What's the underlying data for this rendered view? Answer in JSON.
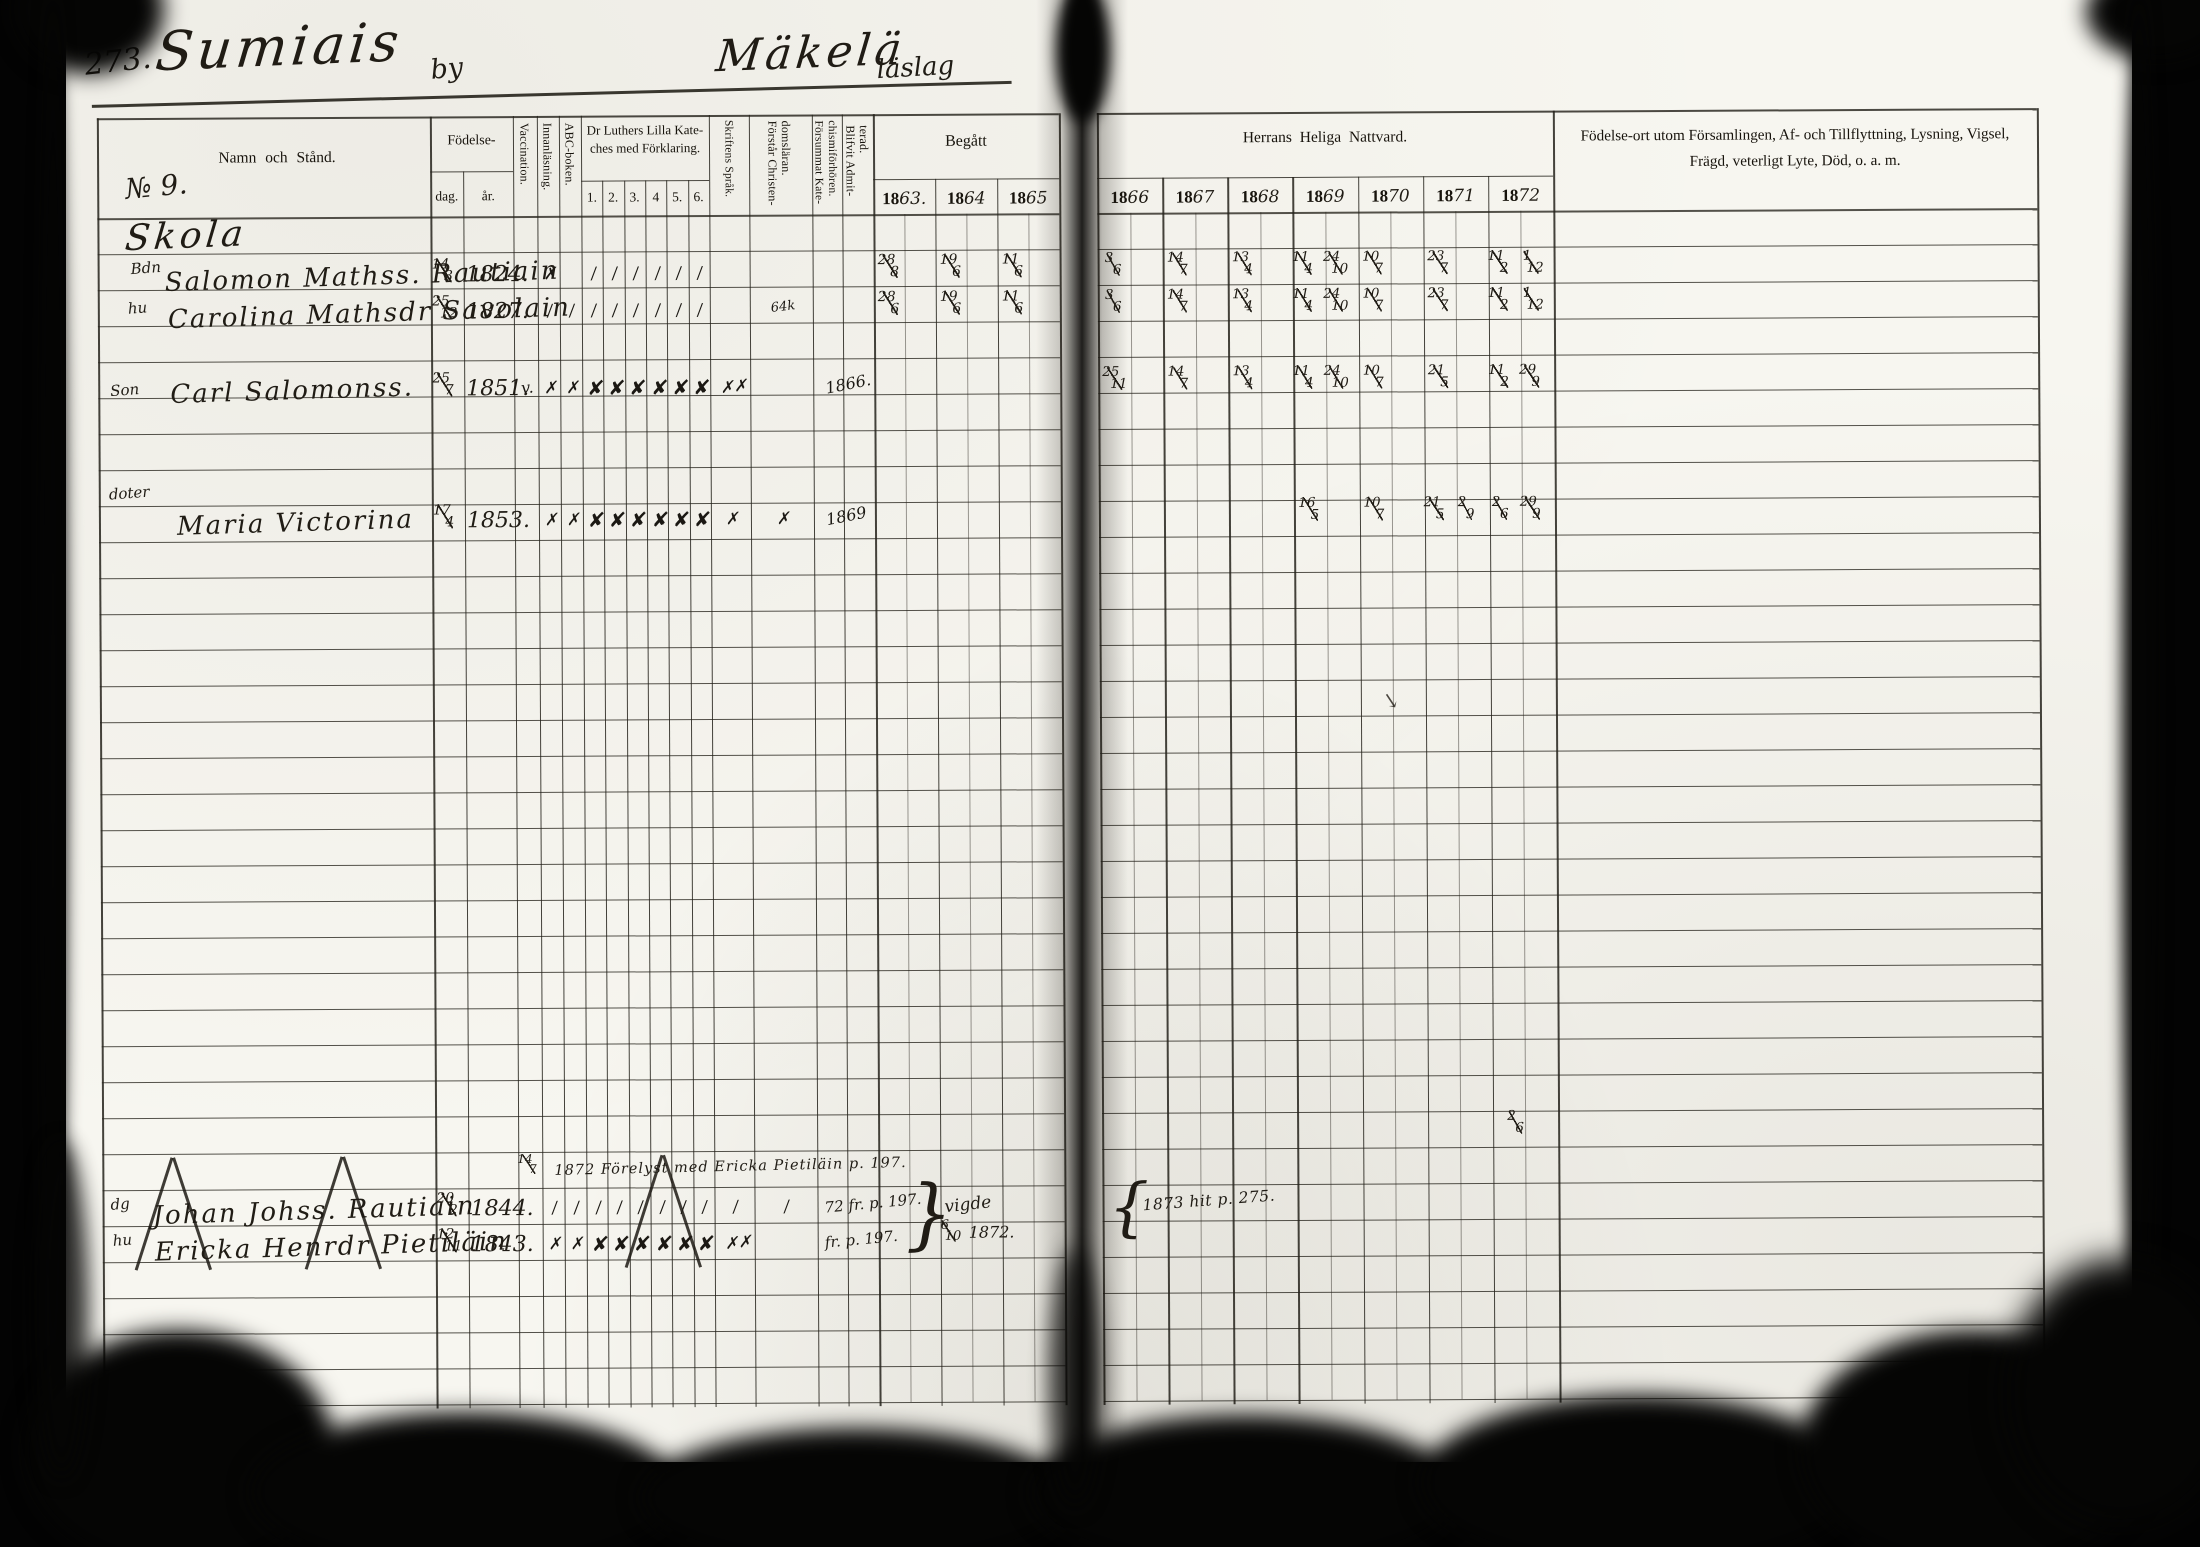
{
  "colors": {
    "paper": "#f7f6f0",
    "ink": "#201c15",
    "print_ink": "#17130c",
    "scan_black": "#050504"
  },
  "titles": {
    "page_number": "273.",
    "village": "Sumiais",
    "village_suffix": "by",
    "district": "Mäkelä",
    "district_suffix": "läslag",
    "series_no": "№ 9."
  },
  "header": {
    "name_col": "Namn och Stånd.",
    "birth_label": "Födelse-",
    "birth_day": "dag.",
    "birth_year": "år.",
    "col_vaccination": "Vaccination.",
    "col_reading": "Innanläsning.",
    "col_abc": "ABC-boken.",
    "catechism_line1": "Dr Luthers Lilla Kate-",
    "catechism_line2": "ches med Förklaring.",
    "catechism_cols": [
      "1.",
      "2.",
      "3.",
      "4",
      "5.",
      "6."
    ],
    "col_scripture": "Skriftens Språk.",
    "col_understands": "Förstår Christen-\ndomsläran.",
    "col_missed": "Försummat Kate-\nchismiförhören.",
    "col_admitted": "Blifvit Admit-\nterad.",
    "communion_past_label": "Begått",
    "communion_past_years": [
      {
        "printed": "18",
        "written": "63."
      },
      {
        "printed": "18",
        "written": "64"
      },
      {
        "printed": "18",
        "written": "65"
      }
    ],
    "communion_label": "Herrans Heliga Nattvard.",
    "communion_years": [
      {
        "printed": "18",
        "written": "66"
      },
      {
        "printed": "18",
        "written": "67"
      },
      {
        "printed": "18",
        "written": "68"
      },
      {
        "printed": "18",
        "written": "69"
      },
      {
        "printed": "18",
        "written": "70"
      },
      {
        "printed": "18",
        "written": "71"
      },
      {
        "printed": "18",
        "written": "72"
      }
    ],
    "notes_col_line1": "Födelse-ort utom Församlingen, Af- och Tillflyttning, Lysning, Vigsel,",
    "notes_col_line2": "Frägd, veterligt Lyte, Död, o. a. m."
  },
  "section_heading": "Skola",
  "records": [
    {
      "prefix": "Bdn",
      "name": "Salomon Mathss. Rautiain",
      "birth_day": "14/3",
      "birth_year": "1824.",
      "marks": {
        "innan": "✗",
        "k1": "/",
        "k2": "/",
        "k3": "/",
        "k4": "/",
        "k5": "/",
        "k6": "/"
      },
      "begatt": [
        "28/8",
        "19/6",
        "11/6"
      ],
      "nattvard": [
        "3/6",
        "14/7",
        "13/4",
        "11/4 24/10",
        "10/7",
        "23/7",
        "11/2 1/12"
      ]
    },
    {
      "prefix": "hu",
      "name": "Carolina Mathsdr Savolain",
      "birth_day": "25/12",
      "birth_year": "1827.",
      "marks": {
        "innan": "/",
        "abc": "/",
        "k1": "/",
        "k2": "/",
        "k3": "/",
        "k4": "/",
        "k5": "/",
        "k6": "/",
        "forstar": "64k"
      },
      "begatt": [
        "28/6",
        "19/6",
        "11/6"
      ],
      "nattvard": [
        "3/6",
        "14/7",
        "13/4",
        "11/4 24/10",
        "10/7",
        "23/7",
        "11/2 1/12"
      ]
    },
    {
      "prefix": "Son",
      "name": "Carl Salomonss.",
      "birth_day": "25/7",
      "birth_year": "1851.",
      "marks": {
        "vacc": "v.",
        "innan": "✗",
        "abc": "✗",
        "k1": "✘",
        "k2": "✘",
        "k3": "✘",
        "k4": "✘",
        "k5": "✘",
        "k6": "✘",
        "sprak": "✗✗",
        "admit": "1866."
      },
      "begatt": [
        "",
        "",
        ""
      ],
      "nattvard": [
        "25/11",
        "14/7",
        "13/4",
        "11/4 24/10",
        "10/7",
        "21/5",
        "11/2 29/9"
      ]
    },
    {
      "prefix": "doter",
      "name": "Maria Victorina",
      "birth_day": "17/4",
      "birth_year": "1853.",
      "marks": {
        "innan": "✗",
        "abc": "✗",
        "k1": "✘",
        "k2": "✘",
        "k3": "✘",
        "k4": "✘",
        "k5": "✘",
        "k6": "✘",
        "sprak": "✗",
        "forstar": "✗",
        "admit": "1869"
      },
      "begatt": [
        "",
        "",
        ""
      ],
      "nattvard": [
        "",
        "",
        "",
        "16/5",
        "10/7",
        "21/5 2/9",
        "2/6 29/9"
      ]
    },
    {
      "prefix": "dg",
      "name": "Johan Johss. Rautiain",
      "birth_day": "20/2",
      "birth_year": "1844.",
      "crossed": true,
      "marks": {
        "innan": "/",
        "abc": "/",
        "k1": "/",
        "k2": "/",
        "k3": "/",
        "k4": "/",
        "k5": "/",
        "k6": "/",
        "sprak": "/",
        "forstar": "/"
      },
      "note": "72 fr. p. 197.",
      "begatt": [
        "",
        "",
        ""
      ],
      "nattvard": [
        "",
        "",
        "",
        "",
        "",
        "",
        ""
      ]
    },
    {
      "prefix": "hu",
      "name": "Ericka Henrdr Pietiläin",
      "birth_day": "12/11",
      "birth_year": "1843.",
      "crossed": true,
      "marks": {
        "innan": "✗",
        "abc": "✗",
        "k1": "✘",
        "k2": "✘",
        "k3": "✘",
        "k4": "✘",
        "k5": "✘",
        "k6": "✘",
        "sprak": "✗✗"
      },
      "note": "fr. p. 197.",
      "begatt": [
        "",
        "",
        ""
      ],
      "nattvard": [
        "",
        "",
        "",
        "",
        "",
        "",
        ""
      ]
    }
  ],
  "annotations": {
    "banns_frac": "14/7",
    "banns_text": "1872 Förelyst med Ericka Pietiläin p. 197.",
    "brace_right": "}",
    "married_word": "vigde",
    "married_frac": "6/10",
    "married_year": "1872.",
    "brace_left": "{",
    "moved_text": "1873 hit p. 275.",
    "stray_communion_1872": "2/6",
    "pen_squiggle": "↘"
  }
}
